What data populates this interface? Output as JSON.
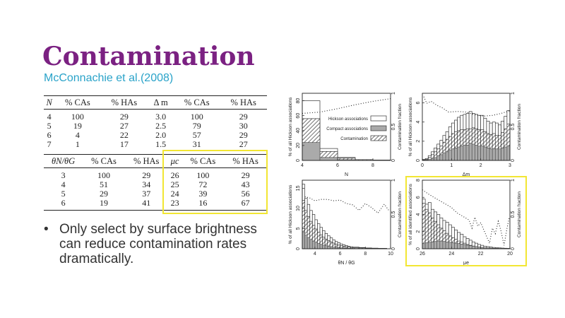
{
  "slide": {
    "title": "Contamination",
    "subtitle": "McConnachie et al.(2008)",
    "bullet": "Only select by surface brightness can reduce contamination rates dramatically.",
    "highlight_color": "#f2e633",
    "title_color": "#7b2182",
    "subtitle_color": "#2aa3c9"
  },
  "table_top": {
    "headers": [
      "N",
      "% CAs",
      "% HAs",
      "Δ m",
      "% CAs",
      "% HAs"
    ],
    "rows": [
      [
        "4",
        "100",
        "29",
        "3.0",
        "100",
        "29"
      ],
      [
        "5",
        "19",
        "27",
        "2.5",
        "79",
        "30"
      ],
      [
        "6",
        "4",
        "22",
        "2.0",
        "57",
        "29"
      ],
      [
        "7",
        "1",
        "17",
        "1.5",
        "31",
        "27"
      ]
    ]
  },
  "table_bottom": {
    "headers": [
      "θN/θG",
      "% CAs",
      "% HAs",
      "μc",
      "% CAs",
      "% HAs"
    ],
    "rows": [
      [
        "3",
        "100",
        "29",
        "26",
        "100",
        "29"
      ],
      [
        "4",
        "51",
        "34",
        "25",
        "72",
        "43"
      ],
      [
        "5",
        "29",
        "37",
        "24",
        "39",
        "56"
      ],
      [
        "6",
        "19",
        "41",
        "23",
        "16",
        "67"
      ]
    ]
  },
  "chart_data": [
    {
      "type": "bar",
      "panel": "top-left",
      "xlabel": "N",
      "ylabel": "% of all Hickson associations",
      "y2label": "Contamination fraction",
      "xlim": [
        4,
        9
      ],
      "ylim": [
        0,
        90
      ],
      "y2lim": [
        0,
        1
      ],
      "xticks": [
        "4",
        "6",
        "8"
      ],
      "yticks": [
        "0",
        "20",
        "40",
        "60",
        "80"
      ],
      "y2ticks": [
        "0",
        "0.5",
        "1"
      ],
      "legend": [
        "Hickson associations",
        "Compact associations",
        "Contamination"
      ],
      "legend_position": "center-right",
      "bins": [
        4,
        5,
        6,
        7,
        8
      ],
      "series": [
        {
          "name": "Hickson associations",
          "values": [
            80,
            16,
            4,
            1,
            0.5
          ]
        },
        {
          "name": "Contamination",
          "values": [
            56,
            12,
            3,
            1,
            0.3
          ]
        },
        {
          "name": "Compact associations",
          "values": [
            24,
            4,
            1,
            0.2,
            0.1
          ]
        }
      ],
      "contamination_fraction": {
        "x": [
          4,
          5,
          6,
          7,
          8,
          9
        ],
        "y": [
          0.7,
          0.72,
          0.77,
          0.83,
          0.88,
          0.92
        ]
      }
    },
    {
      "type": "bar",
      "panel": "top-right",
      "xlabel": "Δm",
      "ylabel": "% of all Hickson associations",
      "y2label": "Contamination fraction",
      "xlim": [
        0,
        3
      ],
      "ylim": [
        0,
        7
      ],
      "y2lim": [
        0,
        1
      ],
      "xticks": [
        "0",
        "1",
        "2",
        "3"
      ],
      "yticks": [
        "0",
        "2",
        "4",
        "6"
      ],
      "y2ticks": [
        "0",
        "0.5",
        "1"
      ],
      "bins": [
        0,
        0.1,
        0.2,
        0.3,
        0.4,
        0.5,
        0.6,
        0.7,
        0.8,
        0.9,
        1.0,
        1.1,
        1.2,
        1.3,
        1.4,
        1.5,
        1.6,
        1.7,
        1.8,
        1.9,
        2.0,
        2.1,
        2.2,
        2.3,
        2.4,
        2.5,
        2.6,
        2.7,
        2.8,
        2.9
      ],
      "series": [
        {
          "name": "Hickson associations",
          "values": [
            0.1,
            0.2,
            0.5,
            0.9,
            1.3,
            1.7,
            2.1,
            2.6,
            3.0,
            3.5,
            3.9,
            4.2,
            4.5,
            4.7,
            4.8,
            4.9,
            5.1,
            4.9,
            4.8,
            4.7,
            4.7,
            4.4,
            4.1,
            3.9,
            4.0,
            3.9,
            3.7,
            4.1,
            4.6,
            5.2
          ]
        },
        {
          "name": "Contamination",
          "values": [
            0.05,
            0.1,
            0.3,
            0.6,
            0.9,
            1.2,
            1.5,
            1.9,
            2.2,
            2.5,
            2.8,
            3.0,
            3.1,
            3.2,
            3.2,
            3.3,
            3.3,
            3.4,
            3.3,
            3.2,
            3.2,
            3.0,
            2.8,
            2.7,
            2.8,
            2.6,
            2.6,
            2.9,
            3.3,
            3.8
          ]
        },
        {
          "name": "Compact associations",
          "values": [
            0.0,
            0.05,
            0.1,
            0.2,
            0.3,
            0.5,
            0.6,
            0.8,
            0.9,
            1.1,
            1.2,
            1.3,
            1.4,
            1.5,
            1.6,
            1.6,
            1.8,
            1.7,
            1.6,
            1.5,
            1.5,
            1.4,
            1.3,
            1.2,
            1.2,
            1.2,
            1.2,
            1.3,
            1.4,
            1.5
          ]
        }
      ],
      "contamination_fraction": {
        "x": [
          0.05,
          0.15,
          0.3,
          0.5,
          0.7,
          0.9,
          1.2,
          1.5,
          1.8,
          2.1,
          2.4,
          2.7,
          3.0
        ],
        "y": [
          0.95,
          0.85,
          0.88,
          0.82,
          0.78,
          0.72,
          0.73,
          0.72,
          0.68,
          0.66,
          0.67,
          0.7,
          0.74
        ]
      }
    },
    {
      "type": "bar",
      "panel": "bottom-left",
      "xlabel": "θN / θG",
      "ylabel": "% of all Hickson associations",
      "y2label": "Contamination fraction",
      "xlim": [
        3,
        10
      ],
      "ylim": [
        0,
        17
      ],
      "y2lim": [
        0,
        1
      ],
      "xticks": [
        "4",
        "6",
        "8",
        "10"
      ],
      "yticks": [
        "0",
        "5",
        "10",
        "15"
      ],
      "y2ticks": [
        "0",
        "0.5",
        "1"
      ],
      "bins": [
        3.0,
        3.2,
        3.4,
        3.6,
        3.8,
        4.0,
        4.2,
        4.4,
        4.6,
        4.8,
        5.0,
        5.2,
        5.4,
        5.6,
        5.8,
        6.0,
        6.2,
        6.4,
        6.6,
        6.8,
        7.0,
        7.5,
        8.0,
        8.5,
        9.0,
        9.5
      ],
      "series": [
        {
          "name": "Hickson associations",
          "values": [
            16,
            12.5,
            11,
            9.5,
            8.5,
            7.2,
            6.2,
            5.3,
            4.5,
            3.8,
            3.2,
            2.7,
            2.2,
            1.8,
            1.5,
            1.2,
            1.0,
            0.8,
            0.6,
            0.5,
            0.4,
            0.3,
            0.2,
            0.15,
            0.1,
            0.1
          ]
        },
        {
          "name": "Contamination",
          "values": [
            12,
            9.5,
            8,
            6.8,
            5.8,
            4.9,
            4.1,
            3.4,
            2.9,
            2.4,
            2.0,
            1.7,
            1.4,
            1.1,
            0.9,
            0.75,
            0.6,
            0.5,
            0.4,
            0.3,
            0.25,
            0.2,
            0.15,
            0.1,
            0.08,
            0.06
          ]
        },
        {
          "name": "Compact associations",
          "values": [
            4.2,
            3.4,
            2.8,
            2.3,
            1.9,
            1.6,
            1.3,
            1.1,
            0.9,
            0.75,
            0.6,
            0.5,
            0.4,
            0.33,
            0.27,
            0.22,
            0.18,
            0.14,
            0.11,
            0.09,
            0.07,
            0.05,
            0.04,
            0.03,
            0.02,
            0.02
          ]
        }
      ],
      "contamination_fraction": {
        "x": [
          3.2,
          3.6,
          4.0,
          4.5,
          5.0,
          5.5,
          6.0,
          6.5,
          7.0,
          7.5,
          8.0,
          8.5,
          9.0,
          9.5,
          9.9
        ],
        "y": [
          0.76,
          0.74,
          0.7,
          0.72,
          0.72,
          0.7,
          0.71,
          0.66,
          0.64,
          0.56,
          0.66,
          0.6,
          0.52,
          0.65,
          0.55
        ]
      }
    },
    {
      "type": "bar",
      "panel": "bottom-right",
      "xlabel": "μe",
      "ylabel": "% of all identified associations",
      "y2label": "Contamination fraction",
      "xlim": [
        26,
        20
      ],
      "ylim": [
        0,
        8
      ],
      "y2lim": [
        0,
        1
      ],
      "xticks": [
        "26",
        "24",
        "22",
        "20"
      ],
      "yticks": [
        "0",
        "2",
        "4",
        "6",
        "8"
      ],
      "y2ticks": [
        "0",
        "0.5",
        "1"
      ],
      "highlighted": true,
      "bins": [
        26.0,
        25.8,
        25.6,
        25.4,
        25.2,
        25.0,
        24.8,
        24.6,
        24.4,
        24.2,
        24.0,
        23.8,
        23.6,
        23.4,
        23.2,
        23.0,
        22.8,
        22.6,
        22.4,
        22.2,
        22.0,
        21.8,
        21.6,
        21.4,
        21.2,
        21.0,
        20.8,
        20.6,
        20.4,
        20.2
      ],
      "series": [
        {
          "name": "Hickson associations",
          "values": [
            5.8,
            5.2,
            5.4,
            4.6,
            4.3,
            4.0,
            3.6,
            3.3,
            3.1,
            2.8,
            2.5,
            2.2,
            1.9,
            1.7,
            1.4,
            1.2,
            1.0,
            0.8,
            0.65,
            0.5,
            0.4,
            0.3,
            0.25,
            0.2,
            0.15,
            0.12,
            0.1,
            0.08,
            0.06,
            0.05
          ]
        },
        {
          "name": "Contamination",
          "values": [
            5.3,
            4.6,
            4.2,
            3.6,
            3.2,
            2.8,
            2.4,
            2.1,
            1.8,
            1.5,
            1.3,
            1.1,
            0.9,
            0.8,
            0.65,
            0.5,
            0.4,
            0.32,
            0.25,
            0.2,
            0.15,
            0.1,
            0.08,
            0.06,
            0.04,
            0.03,
            0.02,
            0.02,
            0.01,
            0.01
          ]
        },
        {
          "name": "Compact associations",
          "values": [
            0.6,
            0.7,
            0.75,
            0.8,
            0.85,
            0.9,
            0.9,
            0.85,
            0.8,
            0.75,
            0.7,
            0.65,
            0.6,
            0.55,
            0.5,
            0.42,
            0.36,
            0.3,
            0.25,
            0.2,
            0.15,
            0.12,
            0.1,
            0.08,
            0.06,
            0.05,
            0.04,
            0.03,
            0.02,
            0.02
          ]
        }
      ],
      "contamination_fraction": {
        "x": [
          26.0,
          25.6,
          25.2,
          24.8,
          24.4,
          24.0,
          23.6,
          23.2,
          22.8,
          22.6,
          22.4,
          22.2,
          22.0,
          21.8,
          21.6,
          21.4,
          21.2,
          21.0,
          20.8,
          20.6,
          20.4,
          20.2,
          20.05
        ],
        "y": [
          0.86,
          0.8,
          0.75,
          0.7,
          0.65,
          0.6,
          0.52,
          0.47,
          0.42,
          0.3,
          0.46,
          0.33,
          0.38,
          0.28,
          0.18,
          0.08,
          0.3,
          0.22,
          0.4,
          0.25,
          0.05,
          0.3,
          0.45
        ]
      }
    }
  ]
}
